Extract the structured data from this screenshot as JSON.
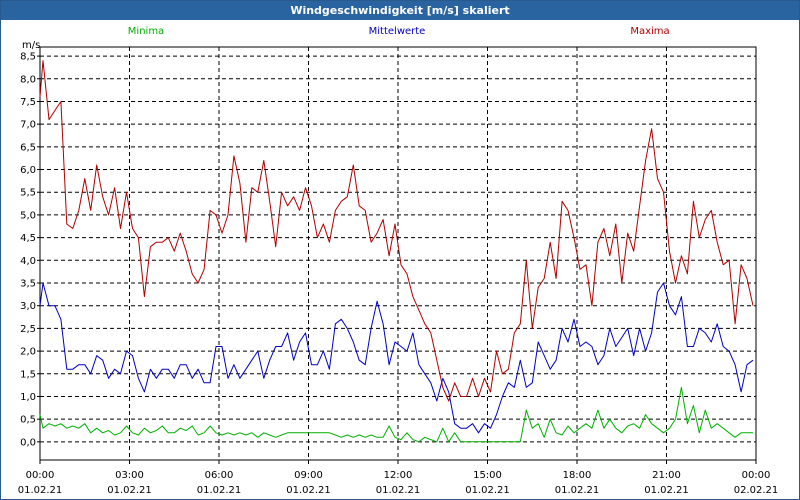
{
  "window": {
    "title": "Windgeschwindigkeit [m/s] skaliert"
  },
  "chart_data": {
    "type": "line",
    "title": "Windgeschwindigkeit [m/s] skaliert",
    "ylabel": "m/s",
    "xlabel": "",
    "ylim": [
      -0.4,
      8.7
    ],
    "xlim": [
      0,
      24
    ],
    "y_ticks": [
      0.0,
      0.5,
      1.0,
      1.5,
      2.0,
      2.5,
      3.0,
      3.5,
      4.0,
      4.5,
      5.0,
      5.5,
      6.0,
      6.5,
      7.0,
      7.5,
      8.0,
      8.5
    ],
    "y_tick_labels": [
      "0,0",
      "0,5",
      "1,0",
      "1,5",
      "2,0",
      "2,5",
      "3,0",
      "3,5",
      "4,0",
      "4,5",
      "5,0",
      "5,5",
      "6,0",
      "6,5",
      "7,0",
      "7,5",
      "8,0",
      "8,5"
    ],
    "x_ticks": [
      {
        "x": 0,
        "time": "00:00",
        "date": "01.02.21"
      },
      {
        "x": 3,
        "time": "03:00",
        "date": "01.02.21"
      },
      {
        "x": 6,
        "time": "06:00",
        "date": "01.02.21"
      },
      {
        "x": 9,
        "time": "09:00",
        "date": "01.02.21"
      },
      {
        "x": 12,
        "time": "12:00",
        "date": "01.02.21"
      },
      {
        "x": 15,
        "time": "15:00",
        "date": "01.02.21"
      },
      {
        "x": 18,
        "time": "18:00",
        "date": "01.02.21"
      },
      {
        "x": 21,
        "time": "21:00",
        "date": "01.02.21"
      },
      {
        "x": 24,
        "time": "00:00",
        "date": "02.02.21"
      }
    ],
    "grid": true,
    "series": [
      {
        "name": "Minima",
        "color": "#00b000",
        "x": [
          0,
          0.1,
          0.3,
          0.5,
          0.7,
          0.9,
          1.1,
          1.3,
          1.5,
          1.7,
          1.9,
          2.1,
          2.3,
          2.5,
          2.7,
          2.9,
          3.1,
          3.3,
          3.5,
          3.7,
          3.9,
          4.1,
          4.3,
          4.5,
          4.7,
          4.9,
          5.1,
          5.3,
          5.5,
          5.7,
          5.9,
          6.1,
          6.3,
          6.5,
          6.7,
          6.9,
          7.1,
          7.3,
          7.5,
          7.7,
          7.9,
          8.1,
          8.3,
          8.5,
          8.7,
          8.9,
          9.1,
          9.3,
          9.5,
          9.7,
          9.9,
          10.1,
          10.3,
          10.5,
          10.7,
          10.9,
          11.1,
          11.3,
          11.5,
          11.7,
          11.9,
          12.1,
          12.3,
          12.5,
          12.7,
          12.9,
          13.1,
          13.3,
          13.5,
          13.7,
          13.9,
          14.1,
          14.3,
          14.5,
          14.7,
          14.9,
          15.1,
          15.3,
          15.5,
          15.7,
          15.9,
          16.1,
          16.3,
          16.5,
          16.7,
          16.9,
          17.1,
          17.3,
          17.5,
          17.7,
          17.9,
          18.1,
          18.3,
          18.5,
          18.7,
          18.9,
          19.1,
          19.3,
          19.5,
          19.7,
          19.9,
          20.1,
          20.3,
          20.5,
          20.7,
          20.9,
          21.1,
          21.3,
          21.5,
          21.7,
          21.9,
          22.1,
          22.3,
          22.5,
          22.7,
          22.9,
          23.1,
          23.3,
          23.5,
          23.7,
          23.9
        ],
        "values": [
          0.6,
          0.3,
          0.4,
          0.35,
          0.4,
          0.3,
          0.35,
          0.3,
          0.4,
          0.2,
          0.3,
          0.2,
          0.25,
          0.15,
          0.2,
          0.35,
          0.2,
          0.15,
          0.3,
          0.2,
          0.25,
          0.35,
          0.2,
          0.2,
          0.3,
          0.25,
          0.35,
          0.15,
          0.2,
          0.35,
          0.2,
          0.15,
          0.2,
          0.15,
          0.2,
          0.15,
          0.2,
          0.1,
          0.2,
          0.15,
          0.1,
          0.15,
          0.2,
          0.2,
          0.2,
          0.2,
          0.2,
          0.2,
          0.2,
          0.2,
          0.15,
          0.1,
          0.15,
          0.1,
          0.15,
          0.1,
          0.15,
          0.1,
          0.1,
          0.35,
          0.1,
          0.05,
          0.2,
          0.05,
          0.0,
          0.1,
          0.05,
          0.0,
          0.3,
          0.0,
          0.2,
          0.0,
          0.0,
          0.0,
          0.0,
          0.0,
          0.0,
          0.0,
          0.0,
          0.0,
          0.0,
          0.0,
          0.7,
          0.3,
          0.4,
          0.1,
          0.5,
          0.2,
          0.15,
          0.35,
          0.2,
          0.3,
          0.4,
          0.3,
          0.7,
          0.3,
          0.5,
          0.3,
          0.2,
          0.35,
          0.4,
          0.3,
          0.6,
          0.4,
          0.3,
          0.2,
          0.3,
          0.5,
          1.2,
          0.4,
          0.8,
          0.2,
          0.7,
          0.3,
          0.4,
          0.3,
          0.2,
          0.1,
          0.2,
          0.2,
          0.2
        ]
      },
      {
        "name": "Mittelwerte",
        "color": "#0000c0",
        "x": [
          0,
          0.1,
          0.3,
          0.5,
          0.7,
          0.9,
          1.1,
          1.3,
          1.5,
          1.7,
          1.9,
          2.1,
          2.3,
          2.5,
          2.7,
          2.9,
          3.1,
          3.3,
          3.5,
          3.7,
          3.9,
          4.1,
          4.3,
          4.5,
          4.7,
          4.9,
          5.1,
          5.3,
          5.5,
          5.7,
          5.9,
          6.1,
          6.3,
          6.5,
          6.7,
          6.9,
          7.1,
          7.3,
          7.5,
          7.7,
          7.9,
          8.1,
          8.3,
          8.5,
          8.7,
          8.9,
          9.1,
          9.3,
          9.5,
          9.7,
          9.9,
          10.1,
          10.3,
          10.5,
          10.7,
          10.9,
          11.1,
          11.3,
          11.5,
          11.7,
          11.9,
          12.1,
          12.3,
          12.5,
          12.7,
          12.9,
          13.1,
          13.3,
          13.5,
          13.7,
          13.9,
          14.1,
          14.3,
          14.5,
          14.7,
          14.9,
          15.1,
          15.3,
          15.5,
          15.7,
          15.9,
          16.1,
          16.3,
          16.5,
          16.7,
          16.9,
          17.1,
          17.3,
          17.5,
          17.7,
          17.9,
          18.1,
          18.3,
          18.5,
          18.7,
          18.9,
          19.1,
          19.3,
          19.5,
          19.7,
          19.9,
          20.1,
          20.3,
          20.5,
          20.7,
          20.9,
          21.1,
          21.3,
          21.5,
          21.7,
          21.9,
          22.1,
          22.3,
          22.5,
          22.7,
          22.9,
          23.1,
          23.3,
          23.5,
          23.7,
          23.9
        ],
        "values": [
          3.0,
          3.5,
          3.0,
          3.0,
          2.7,
          1.6,
          1.6,
          1.7,
          1.7,
          1.5,
          1.9,
          1.8,
          1.4,
          1.6,
          1.5,
          2.0,
          1.9,
          1.4,
          1.1,
          1.6,
          1.4,
          1.6,
          1.6,
          1.4,
          1.7,
          1.7,
          1.4,
          1.6,
          1.3,
          1.3,
          2.1,
          2.1,
          1.4,
          1.7,
          1.4,
          1.6,
          1.8,
          2.0,
          1.4,
          1.8,
          2.1,
          2.1,
          2.4,
          1.8,
          2.2,
          2.4,
          1.7,
          1.7,
          2.0,
          1.6,
          2.6,
          2.7,
          2.5,
          2.2,
          1.8,
          1.7,
          2.5,
          3.1,
          2.6,
          1.7,
          2.2,
          2.1,
          2.0,
          2.4,
          1.7,
          1.5,
          1.3,
          0.9,
          1.4,
          1.1,
          0.4,
          0.3,
          0.3,
          0.4,
          0.2,
          0.4,
          0.3,
          0.6,
          1.0,
          1.3,
          1.2,
          1.8,
          1.2,
          1.3,
          2.2,
          1.9,
          1.6,
          1.8,
          2.5,
          2.2,
          2.7,
          2.1,
          2.2,
          2.1,
          1.7,
          1.9,
          2.5,
          2.1,
          2.3,
          2.5,
          1.9,
          2.5,
          2.0,
          2.4,
          3.3,
          3.5,
          3.0,
          2.8,
          3.2,
          2.1,
          2.1,
          2.5,
          2.4,
          2.2,
          2.6,
          2.1,
          2.0,
          1.7,
          1.1,
          1.7,
          1.8
        ]
      },
      {
        "name": "Maxima",
        "color": "#b00000",
        "x": [
          0,
          0.1,
          0.3,
          0.5,
          0.7,
          0.9,
          1.1,
          1.3,
          1.5,
          1.7,
          1.9,
          2.1,
          2.3,
          2.5,
          2.7,
          2.9,
          3.1,
          3.3,
          3.5,
          3.7,
          3.9,
          4.1,
          4.3,
          4.5,
          4.7,
          4.9,
          5.1,
          5.3,
          5.5,
          5.7,
          5.9,
          6.1,
          6.3,
          6.5,
          6.7,
          6.9,
          7.1,
          7.3,
          7.5,
          7.7,
          7.9,
          8.1,
          8.3,
          8.5,
          8.7,
          8.9,
          9.1,
          9.3,
          9.5,
          9.7,
          9.9,
          10.1,
          10.3,
          10.5,
          10.7,
          10.9,
          11.1,
          11.3,
          11.5,
          11.7,
          11.9,
          12.1,
          12.3,
          12.5,
          12.7,
          12.9,
          13.1,
          13.3,
          13.5,
          13.7,
          13.9,
          14.1,
          14.3,
          14.5,
          14.7,
          14.9,
          15.1,
          15.3,
          15.5,
          15.7,
          15.9,
          16.1,
          16.3,
          16.5,
          16.7,
          16.9,
          17.1,
          17.3,
          17.5,
          17.7,
          17.9,
          18.1,
          18.3,
          18.5,
          18.7,
          18.9,
          19.1,
          19.3,
          19.5,
          19.7,
          19.9,
          20.1,
          20.3,
          20.5,
          20.7,
          20.9,
          21.1,
          21.3,
          21.5,
          21.7,
          21.9,
          22.1,
          22.3,
          22.5,
          22.7,
          22.9,
          23.1,
          23.3,
          23.5,
          23.7,
          23.9
        ],
        "values": [
          7.6,
          8.4,
          7.1,
          7.3,
          7.5,
          4.8,
          4.7,
          5.1,
          5.8,
          5.1,
          6.1,
          5.4,
          5.0,
          5.6,
          4.7,
          5.5,
          4.7,
          4.5,
          3.2,
          4.3,
          4.4,
          4.4,
          4.5,
          4.2,
          4.6,
          4.2,
          3.7,
          3.5,
          3.8,
          5.1,
          5.0,
          4.6,
          5.0,
          6.3,
          5.7,
          4.4,
          5.6,
          5.5,
          6.2,
          5.3,
          4.3,
          5.5,
          5.2,
          5.4,
          5.1,
          5.6,
          5.2,
          4.5,
          4.8,
          4.4,
          5.1,
          5.3,
          5.4,
          6.1,
          5.2,
          5.1,
          4.4,
          4.6,
          4.9,
          4.1,
          4.8,
          3.9,
          3.7,
          3.2,
          2.9,
          2.6,
          2.4,
          1.8,
          1.2,
          0.9,
          1.3,
          1.0,
          1.0,
          1.4,
          1.0,
          1.4,
          1.1,
          2.0,
          1.5,
          1.6,
          2.4,
          2.6,
          4.0,
          2.5,
          3.4,
          3.6,
          4.4,
          3.6,
          5.3,
          5.1,
          4.5,
          3.8,
          3.9,
          3.0,
          4.4,
          4.7,
          4.1,
          4.8,
          3.5,
          4.6,
          4.2,
          5.2,
          6.2,
          6.9,
          5.8,
          5.5,
          4.2,
          3.5,
          4.1,
          3.7,
          5.3,
          4.5,
          4.9,
          5.1,
          4.4,
          3.9,
          4.0,
          2.6,
          3.9,
          3.6,
          3.0
        ]
      }
    ]
  }
}
